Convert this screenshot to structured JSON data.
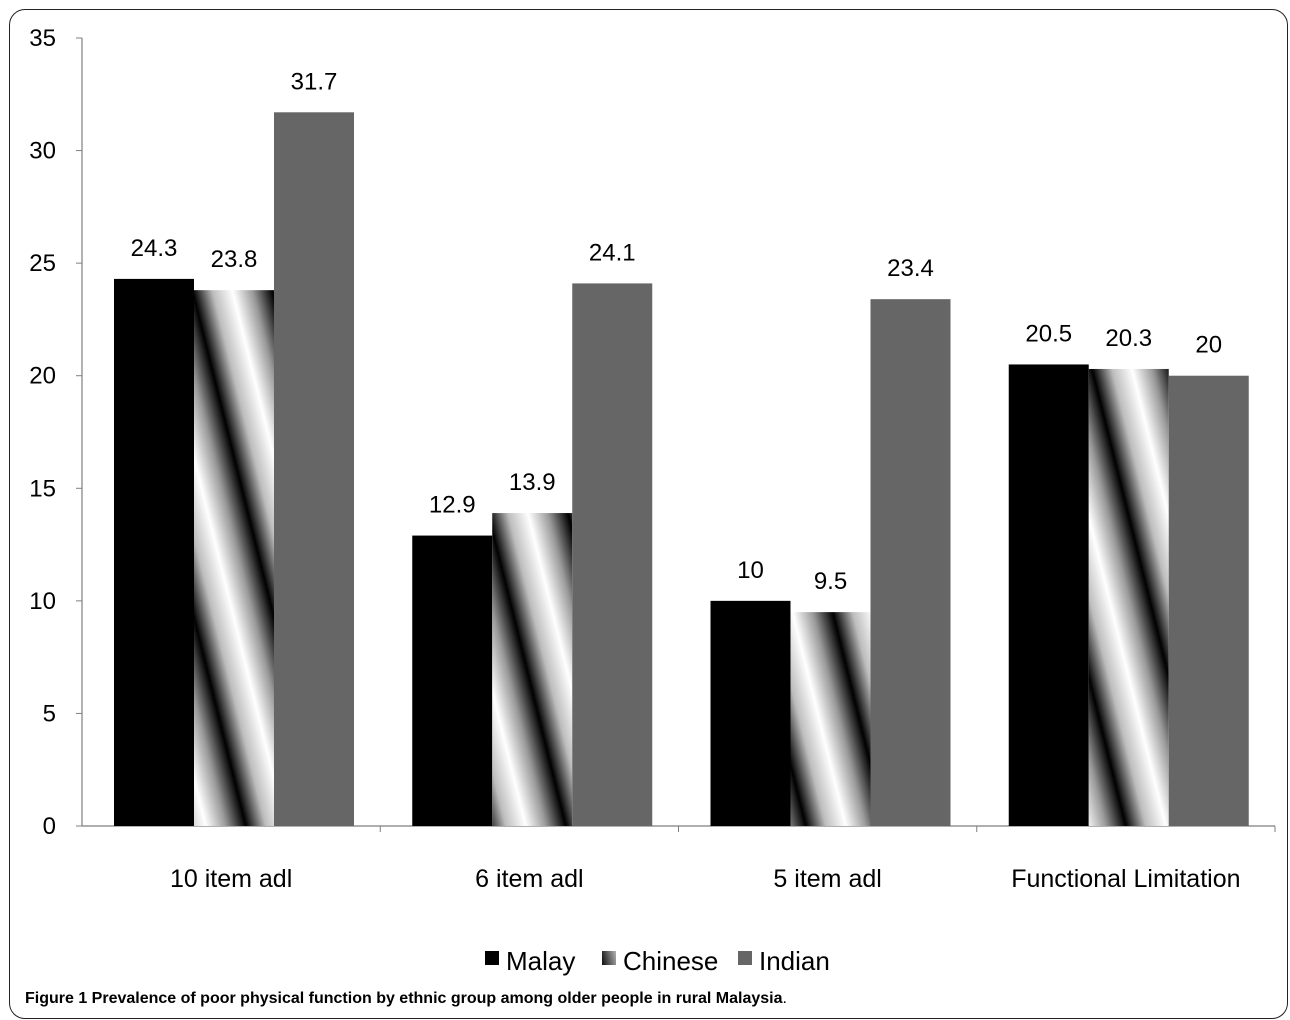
{
  "chart_data": {
    "type": "bar",
    "categories": [
      "10 item adl",
      "6 item adl",
      "5 item adl",
      "Functional Limitation"
    ],
    "series": [
      {
        "name": "Malay",
        "values": [
          24.3,
          12.9,
          10,
          20.5
        ]
      },
      {
        "name": "Chinese",
        "values": [
          23.8,
          13.9,
          9.5,
          20.3
        ]
      },
      {
        "name": "Indian",
        "values": [
          31.7,
          24.1,
          23.4,
          20
        ]
      }
    ],
    "data_labels": [
      [
        "24.3",
        "12.9",
        "10",
        "20.5"
      ],
      [
        "23.8",
        "13.9",
        "9.5",
        "20.3"
      ],
      [
        "31.7",
        "24.1",
        "23.4",
        "20"
      ]
    ],
    "ylim": [
      0,
      35
    ],
    "yticks": [
      0,
      5,
      10,
      15,
      20,
      25,
      30,
      35
    ],
    "grid": false,
    "legend_position": "bottom",
    "colors": {
      "Malay": "#000000",
      "Chinese": "pattern-diagonal-gray",
      "Indian": "#666666"
    }
  },
  "caption": {
    "label": "Figure 1",
    "text": " Prevalence of poor physical function by ethnic group among older people in rural Malaysia",
    "end": "."
  }
}
